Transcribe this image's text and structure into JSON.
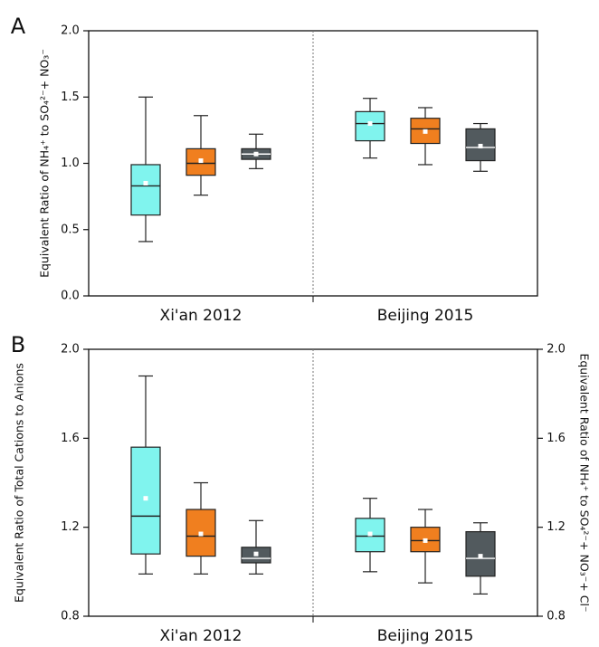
{
  "chart_data": [
    {
      "type": "box",
      "panel_label": "A",
      "y_label": "Equivalent Ratio of NH₄⁺ to SO₄²⁻+ NO₃⁻",
      "categories": [
        "Xi'an 2012",
        "Beijing 2015"
      ],
      "ylim": [
        0,
        2
      ],
      "yticks": [
        {
          "value": 0,
          "label": "0.0"
        },
        0.5,
        {
          "value": 1,
          "label": "1.0"
        },
        1.5,
        {
          "value": 2,
          "label": "2.0"
        }
      ],
      "series": [
        {
          "color": "#80f4ee",
          "median_color": "#222222",
          "whisker_low": [
            0.41,
            1.04
          ],
          "q1": [
            0.61,
            1.17
          ],
          "median": [
            0.83,
            1.3
          ],
          "q3": [
            0.99,
            1.39
          ],
          "whisker_high": [
            1.5,
            1.49
          ],
          "mean": [
            0.85,
            1.3
          ]
        },
        {
          "color": "#f07f1f",
          "median_color": "#222222",
          "whisker_low": [
            0.76,
            0.99
          ],
          "q1": [
            0.91,
            1.15
          ],
          "median": [
            1.0,
            1.26
          ],
          "q3": [
            1.11,
            1.34
          ],
          "whisker_high": [
            1.36,
            1.42
          ],
          "mean": [
            1.02,
            1.24
          ]
        },
        {
          "color": "#525a5e",
          "median_color": "#ffffff",
          "whisker_low": [
            0.96,
            0.94
          ],
          "q1": [
            1.03,
            1.02
          ],
          "median": [
            1.07,
            1.12
          ],
          "q3": [
            1.11,
            1.26
          ],
          "whisker_high": [
            1.22,
            1.3
          ],
          "mean": [
            1.07,
            1.13
          ]
        }
      ]
    },
    {
      "type": "box",
      "panel_label": "B",
      "y_label": "Equivalent Ratio of Total Cations to Anions",
      "y2_label": "Equivalent Ratio of NH₄⁺ to SO₄²⁻+ NO₃⁻+ Cl⁻",
      "categories": [
        "Xi'an 2012",
        "Beijing 2015"
      ],
      "ylim": [
        0.8,
        2
      ],
      "yticks": [
        0.8,
        1.2,
        1.6,
        {
          "value": 2,
          "label": "2.0"
        }
      ],
      "y2lim": [
        0.8,
        2
      ],
      "y2ticks": [
        0.8,
        1.2,
        1.6,
        {
          "value": 2,
          "label": "2.0"
        }
      ],
      "series": [
        {
          "color": "#80f4ee",
          "median_color": "#222222",
          "whisker_low": [
            0.99,
            1.0
          ],
          "q1": [
            1.08,
            1.09
          ],
          "median": [
            1.25,
            1.16
          ],
          "q3": [
            1.56,
            1.24
          ],
          "whisker_high": [
            1.88,
            1.33
          ],
          "mean": [
            1.33,
            1.17
          ]
        },
        {
          "color": "#f07f1f",
          "median_color": "#222222",
          "whisker_low": [
            0.99,
            0.95
          ],
          "q1": [
            1.07,
            1.09
          ],
          "median": [
            1.16,
            1.14
          ],
          "q3": [
            1.28,
            1.2
          ],
          "whisker_high": [
            1.4,
            1.28
          ],
          "mean": [
            1.17,
            1.14
          ]
        },
        {
          "color": "#525a5e",
          "median_color": "#ffffff",
          "whisker_low": [
            0.99,
            0.9
          ],
          "q1": [
            1.04,
            0.98
          ],
          "median": [
            1.06,
            1.06
          ],
          "q3": [
            1.11,
            1.18
          ],
          "whisker_high": [
            1.23,
            1.22
          ],
          "mean": [
            1.08,
            1.07
          ],
          "axis": "y2"
        }
      ]
    }
  ]
}
